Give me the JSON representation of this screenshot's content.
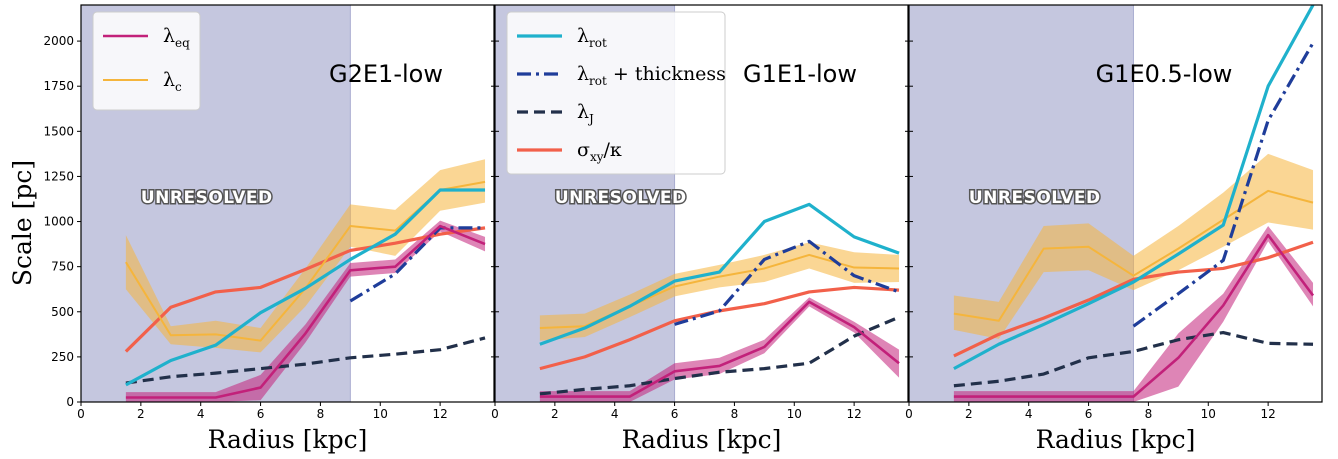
{
  "chart_data": {
    "type": "line",
    "ylabel": "Scale   [pc]",
    "xlabel": "Radius   [kpc]",
    "xlim": [
      0,
      13.8
    ],
    "ylim": [
      0,
      2200
    ],
    "xticks": [
      0,
      2,
      4,
      6,
      8,
      10,
      12
    ],
    "yticks": [
      0,
      250,
      500,
      750,
      1000,
      1250,
      1500,
      1750,
      2000
    ],
    "unresolved_label": "UNRESOLVED",
    "colors": {
      "lambda_eq": "#c2217a",
      "lambda_c": "#f5b53c",
      "lambda_rot": "#1fb1cc",
      "lambda_rot_thick": "#1f3d9a",
      "lambda_J": "#22304a",
      "sigma_kappa": "#f2604a",
      "unresolved": "#c5c7df"
    },
    "legend_entries": [
      {
        "key": "lambda_eq",
        "base": "λ",
        "sub": "eq",
        "suffix": "",
        "style": "solid"
      },
      {
        "key": "lambda_c",
        "base": "λ",
        "sub": "c",
        "suffix": "",
        "style": "solid"
      },
      {
        "key": "lambda_rot",
        "base": "λ",
        "sub": "rot",
        "suffix": "",
        "style": "solid"
      },
      {
        "key": "lambda_rot_thick",
        "base": "λ",
        "sub": "rot",
        "suffix": " + thickness",
        "style": "dashdot"
      },
      {
        "key": "lambda_J",
        "base": "λ",
        "sub": "J",
        "suffix": "",
        "style": "dashed"
      },
      {
        "key": "sigma_kappa",
        "base": "σ",
        "sub": "xy",
        "suffix": "/κ",
        "style": "solid"
      }
    ],
    "panels": [
      {
        "title": "G2E1-low",
        "unresolved_max": 9.0,
        "legend_keys": [
          "lambda_eq",
          "lambda_c"
        ],
        "series": {
          "lambda_c": {
            "x": [
              1.5,
              3.0,
              4.5,
              6.0,
              7.5,
              9.0,
              10.5,
              12.0,
              13.5
            ],
            "y": [
              775,
              370,
              375,
              340,
              630,
              975,
              950,
              1175,
              1220
            ],
            "lo": [
              625,
              320,
              300,
              275,
              530,
              860,
              810,
              1060,
              1105
            ],
            "hi": [
              925,
              420,
              450,
              410,
              740,
              1095,
              1065,
              1285,
              1345
            ]
          },
          "lambda_rot": {
            "x": [
              1.5,
              3.0,
              4.5,
              6.0,
              7.5,
              9.0,
              10.5,
              12.0,
              13.5
            ],
            "y": [
              95,
              230,
              315,
              495,
              630,
              790,
              930,
              1175,
              1175
            ]
          },
          "lambda_rot_thick": {
            "x": [
              9.0,
              10.5,
              12.0,
              13.5
            ],
            "y": [
              560,
              710,
              965,
              965
            ]
          },
          "lambda_J": {
            "x": [
              1.5,
              3.0,
              4.5,
              6.0,
              7.5,
              9.0,
              10.5,
              12.0,
              13.5
            ],
            "y": [
              105,
              140,
              160,
              185,
              210,
              245,
              265,
              290,
              355
            ]
          },
          "sigma_kappa": {
            "x": [
              1.5,
              3.0,
              4.5,
              6.0,
              7.5,
              9.0,
              10.5,
              12.0,
              13.5
            ],
            "y": [
              280,
              525,
              610,
              635,
              735,
              840,
              880,
              930,
              965
            ]
          },
          "lambda_eq": {
            "x": [
              1.5,
              3.0,
              4.5,
              6.0,
              7.5,
              9.0,
              10.5,
              12.0,
              13.5
            ],
            "y": [
              25,
              25,
              25,
              80,
              380,
              730,
              750,
              975,
              875
            ],
            "lo": [
              0,
              0,
              0,
              10,
              330,
              695,
              715,
              945,
              835
            ],
            "hi": [
              55,
              55,
              55,
              150,
              430,
              770,
              790,
              1005,
              915
            ]
          }
        }
      },
      {
        "title": "G1E1-low",
        "unresolved_max": 6.0,
        "legend_keys": [
          "lambda_rot",
          "lambda_rot_thick",
          "lambda_J",
          "sigma_kappa"
        ],
        "series": {
          "lambda_c": {
            "x": [
              1.5,
              3.0,
              4.5,
              6.0,
              7.5,
              9.0,
              10.5,
              12.0,
              13.5
            ],
            "y": [
              410,
              420,
              530,
              640,
              695,
              740,
              815,
              745,
              740
            ],
            "lo": [
              340,
              360,
              470,
              585,
              635,
              665,
              740,
              660,
              665
            ],
            "hi": [
              480,
              490,
              595,
              710,
              760,
              815,
              885,
              830,
              815
            ]
          },
          "lambda_rot": {
            "x": [
              1.5,
              3.0,
              4.5,
              6.0,
              7.5,
              9.0,
              10.5,
              12.0,
              13.5
            ],
            "y": [
              320,
              410,
              530,
              670,
              720,
              1000,
              1095,
              915,
              825
            ]
          },
          "lambda_rot_thick": {
            "x": [
              6.0,
              7.5,
              9.0,
              10.5,
              12.0,
              13.5
            ],
            "y": [
              430,
              505,
              790,
              890,
              700,
              610
            ]
          },
          "lambda_J": {
            "x": [
              1.5,
              3.0,
              4.5,
              6.0,
              7.5,
              9.0,
              10.5,
              12.0,
              13.5
            ],
            "y": [
              45,
              70,
              90,
              130,
              165,
              185,
              215,
              365,
              470
            ]
          },
          "sigma_kappa": {
            "x": [
              1.5,
              3.0,
              4.5,
              6.0,
              7.5,
              9.0,
              10.5,
              12.0,
              13.5
            ],
            "y": [
              185,
              250,
              345,
              450,
              505,
              545,
              610,
              635,
              620
            ]
          },
          "lambda_eq": {
            "x": [
              1.5,
              3.0,
              4.5,
              6.0,
              7.5,
              9.0,
              10.5,
              12.0,
              13.5
            ],
            "y": [
              30,
              30,
              30,
              170,
              200,
              305,
              555,
              415,
              215
            ],
            "lo": [
              0,
              0,
              0,
              125,
              155,
              270,
              530,
              385,
              135
            ],
            "hi": [
              60,
              60,
              60,
              215,
              245,
              345,
              580,
              445,
              290
            ]
          }
        }
      },
      {
        "title": "G1E0.5-low",
        "unresolved_max": 7.5,
        "legend_keys": [],
        "series": {
          "lambda_c": {
            "x": [
              1.5,
              3.0,
              4.5,
              6.0,
              7.5,
              9.0,
              10.5,
              12.0,
              13.5
            ],
            "y": [
              490,
              450,
              850,
              860,
              700,
              850,
              1010,
              1170,
              1105
            ],
            "lo": [
              400,
              350,
              720,
              730,
              620,
              730,
              860,
              995,
              955
            ],
            "hi": [
              590,
              555,
              975,
              990,
              810,
              975,
              1160,
              1375,
              1285
            ]
          },
          "lambda_rot": {
            "x": [
              1.5,
              3.0,
              4.5,
              6.0,
              7.5,
              9.0,
              10.5,
              12.0,
              13.5
            ],
            "y": [
              185,
              320,
              430,
              545,
              665,
              820,
              980,
              1750,
              2200
            ]
          },
          "lambda_rot_thick": {
            "x": [
              7.5,
              9.0,
              10.5,
              12.0,
              13.5
            ],
            "y": [
              420,
              600,
              785,
              1560,
              1990
            ]
          },
          "lambda_J": {
            "x": [
              1.5,
              3.0,
              4.5,
              6.0,
              7.5,
              9.0,
              10.5,
              12.0,
              13.5
            ],
            "y": [
              90,
              115,
              155,
              245,
              280,
              345,
              385,
              325,
              320
            ]
          },
          "sigma_kappa": {
            "x": [
              1.5,
              3.0,
              4.5,
              6.0,
              7.5,
              9.0,
              10.5,
              12.0,
              13.5
            ],
            "y": [
              255,
              375,
              465,
              565,
              680,
              720,
              740,
              800,
              885
            ]
          },
          "lambda_eq": {
            "x": [
              1.5,
              3.0,
              4.5,
              6.0,
              7.5,
              9.0,
              10.5,
              12.0,
              13.5
            ],
            "y": [
              30,
              30,
              30,
              30,
              30,
              245,
              535,
              925,
              590
            ],
            "lo": [
              0,
              0,
              0,
              0,
              0,
              85,
              445,
              890,
              530
            ],
            "hi": [
              60,
              60,
              60,
              60,
              60,
              380,
              600,
              975,
              660
            ]
          }
        }
      }
    ]
  }
}
